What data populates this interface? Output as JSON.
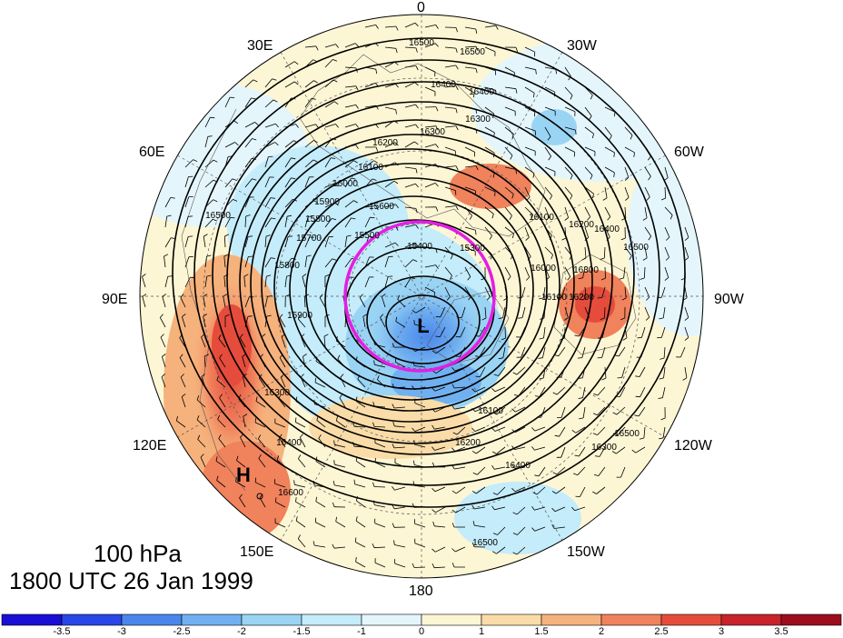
{
  "title": {
    "level": "100 hPa",
    "valid_time": "1800 UTC 26 Jan 1999"
  },
  "longitude_labels": [
    "0",
    "30W",
    "60W",
    "90W",
    "120W",
    "150W",
    "180",
    "150E",
    "120E",
    "90E",
    "60E",
    "30E"
  ],
  "markers": {
    "low": "L",
    "high": "H"
  },
  "contour_labels": [
    "16500",
    "16500",
    "16400",
    "16400",
    "16300",
    "16300",
    "16200",
    "16100",
    "16000",
    "15900",
    "15800",
    "15700",
    "15600",
    "15500",
    "15400",
    "15300",
    "16100",
    "16200",
    "16300",
    "16400",
    "16500",
    "16600",
    "16400",
    "16300",
    "16200",
    "16100",
    "16500",
    "16500",
    "15800",
    "15900",
    "16000",
    "16100",
    "16200",
    "16300",
    "16400",
    "16500"
  ],
  "colorbar": {
    "ticks": [
      "-3.5",
      "-3",
      "-2.5",
      "-2",
      "-1.5",
      "-1",
      "0",
      "1",
      "1.5",
      "2",
      "2.5",
      "3",
      "3.5"
    ],
    "colors": [
      "#1a0fd4",
      "#2a46e6",
      "#4a86ec",
      "#70b0f0",
      "#9ad4f4",
      "#c4ecfa",
      "#e4f6fc",
      "#fdf6d4",
      "#fadca8",
      "#f6b27c",
      "#f0825c",
      "#e54c3c",
      "#c8222a",
      "#9c0e1e"
    ]
  },
  "colors": {
    "highlight_circle": "#e41ee4",
    "contour": "#000000"
  }
}
